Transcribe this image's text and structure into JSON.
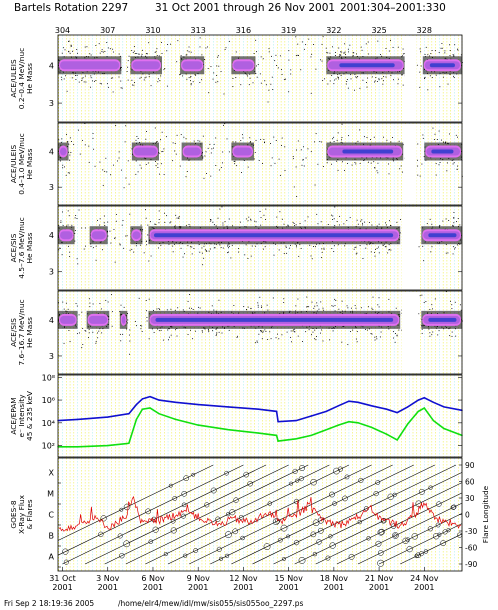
{
  "header": {
    "title": "Bartels Rotation 2297",
    "date_range": "31 Oct 2001 through 26 Nov 2001",
    "doy_range": "2001:304–2001:330"
  },
  "footer": {
    "timestamp": "Fri Sep  2 18:19:36 2005",
    "path": "/home/elr4/mew/idl/mw/sis055/sis055oo_2297.ps"
  },
  "colors": {
    "yellow_grid": "#e8e800",
    "aqua_grid": "#88e8e8",
    "purple_band": "#b060e0",
    "magenta_band": "#e070f0",
    "blue_core": "#4040d0",
    "blue_line": "#1010d0",
    "green_line": "#10e010",
    "xray_line": "#e00000"
  },
  "chart_data": [
    {
      "type": "scatter",
      "panel_label_lines": [
        "ACE/ULEIS",
        "0.2–0.4 MeV/nuc",
        "He Mass"
      ],
      "ylim": [
        2.5,
        4.8
      ],
      "yticks": [
        "4",
        "3"
      ],
      "doy_ticks": [
        "304",
        "307",
        "310",
        "313",
        "316",
        "319",
        "322",
        "325",
        "328"
      ],
      "active_intervals_doy": [
        [
          303.7,
          307.9
        ],
        [
          308.5,
          310.6
        ],
        [
          311.8,
          313.4
        ],
        [
          315.2,
          316.8
        ],
        [
          321.5,
          326.7
        ],
        [
          327.9,
          330.5
        ]
      ],
      "core_intervals_doy": [
        [
          322.1,
          326.3
        ],
        [
          328.1,
          330.3
        ]
      ],
      "gaps_doy": [
        [
          326.7,
          327.5
        ]
      ],
      "band_center": 4.0,
      "scatter_intensity": 0.55
    },
    {
      "type": "scatter",
      "panel_label_lines": [
        "ACE/ULEIS",
        "0.4–1.0 MeV/nuc",
        "He Mass"
      ],
      "ylim": [
        2.5,
        4.8
      ],
      "yticks": [
        "4",
        "3"
      ],
      "active_intervals_doy": [
        [
          303.7,
          304.4
        ],
        [
          308.6,
          310.4
        ],
        [
          311.9,
          313.3
        ],
        [
          315.2,
          316.7
        ],
        [
          321.5,
          326.6
        ],
        [
          328.0,
          330.5
        ]
      ],
      "core_intervals_doy": [
        [
          322.3,
          326.2
        ],
        [
          328.2,
          330.2
        ]
      ],
      "gaps_doy": [
        [
          326.7,
          327.5
        ]
      ],
      "band_center": 4.0,
      "scatter_intensity": 0.4
    },
    {
      "type": "scatter",
      "panel_label_lines": [
        "ACE/SIS",
        "4.5–7.6 MeV/nuc",
        "He Mass"
      ],
      "ylim": [
        2.5,
        4.8
      ],
      "yticks": [
        "4",
        "3"
      ],
      "active_intervals_doy": [
        [
          303.7,
          304.8
        ],
        [
          305.8,
          307.0
        ],
        [
          308.5,
          309.3
        ],
        [
          309.7,
          326.4
        ],
        [
          327.8,
          330.5
        ]
      ],
      "core_intervals_doy": [
        [
          309.8,
          326.2
        ],
        [
          328.0,
          330.4
        ]
      ],
      "gaps_doy": [
        [
          326.5,
          327.6
        ]
      ],
      "band_center": 4.0,
      "scatter_intensity": 0.5
    },
    {
      "type": "scatter",
      "panel_label_lines": [
        "ACE/SIS",
        "7.6–16.7 MeV/nuc",
        "He Mass"
      ],
      "ylim": [
        2.5,
        4.8
      ],
      "yticks": [
        "4",
        "3"
      ],
      "active_intervals_doy": [
        [
          303.7,
          305.0
        ],
        [
          305.6,
          307.1
        ],
        [
          307.8,
          308.3
        ],
        [
          309.7,
          326.4
        ],
        [
          327.8,
          330.5
        ]
      ],
      "core_intervals_doy": [
        [
          309.9,
          326.2
        ],
        [
          328.0,
          330.4
        ]
      ],
      "gaps_doy": [
        [
          326.5,
          327.6
        ]
      ],
      "band_center": 4.0,
      "scatter_intensity": 0.45
    },
    {
      "type": "line",
      "panel_label_lines": [
        "ACE/EPAM",
        "e⁻ Intensity",
        "45 & 235 keV"
      ],
      "y_log": true,
      "ylim_log10": [
        1,
        8.2
      ],
      "yticks": [
        "10⁸",
        "10⁶",
        "10⁴",
        "10²"
      ],
      "series": [
        {
          "color": "blue",
          "x_doy": [
            303.7,
            305,
            307,
            308.4,
            308.9,
            309.3,
            309.8,
            310.4,
            311.5,
            313,
            315,
            317,
            318.2,
            318.3,
            319.5,
            320.5,
            321.5,
            322.3,
            323.0,
            323.6,
            324.5,
            325.5,
            326.2,
            326.9,
            327.6,
            328.0,
            328.6,
            329.3,
            330.5
          ],
          "log10_values": [
            4.2,
            4.3,
            4.5,
            4.8,
            5.6,
            6.1,
            6.3,
            6.0,
            5.8,
            5.6,
            5.4,
            5.2,
            5.0,
            4.1,
            4.2,
            4.6,
            5.0,
            5.5,
            5.9,
            5.8,
            5.5,
            5.2,
            4.9,
            5.4,
            6.0,
            6.2,
            5.8,
            5.4,
            5.1
          ]
        },
        {
          "color": "green",
          "x_doy": [
            303.7,
            305,
            307,
            308.4,
            308.9,
            309.3,
            309.8,
            310.4,
            311.5,
            313,
            315,
            317,
            318.2,
            318.3,
            319.5,
            320.5,
            321.5,
            322.3,
            323.0,
            323.6,
            324.5,
            325.5,
            326.2,
            326.9,
            327.6,
            328.0,
            328.6,
            329.3,
            330.5
          ],
          "log10_values": [
            1.9,
            1.9,
            2.0,
            2.2,
            4.3,
            5.2,
            5.3,
            4.8,
            4.3,
            3.8,
            3.4,
            3.1,
            2.9,
            2.4,
            2.6,
            2.9,
            3.4,
            3.8,
            4.1,
            4.0,
            3.6,
            3.0,
            2.5,
            3.9,
            5.0,
            5.3,
            4.2,
            3.5,
            2.9
          ]
        }
      ]
    },
    {
      "type": "line",
      "panel_label_lines": [
        "GOES-8",
        "X-Ray Flux",
        "& Flares"
      ],
      "left_axis_labels": [
        "X",
        "M",
        "C",
        "B",
        "A"
      ],
      "right_axis_label": "Flare Longitude",
      "right_axis_ticks": [
        "90",
        "60",
        "30",
        "0",
        "-30",
        "-60",
        "-90"
      ],
      "xray_class_log": [
        {
          "doy": 303.7,
          "cls": 1.8
        },
        {
          "doy": 305.0,
          "cls": 2.0
        },
        {
          "doy": 306.2,
          "cls": 2.3
        },
        {
          "doy": 307.1,
          "cls": 1.9
        },
        {
          "doy": 308.4,
          "cls": 2.5
        },
        {
          "doy": 308.7,
          "cls": 3.3
        },
        {
          "doy": 309.2,
          "cls": 2.1
        },
        {
          "doy": 310.3,
          "cls": 2.2
        },
        {
          "doy": 311.2,
          "cls": 2.4
        },
        {
          "doy": 312.1,
          "cls": 2.7
        },
        {
          "doy": 313.5,
          "cls": 2.2
        },
        {
          "doy": 314.4,
          "cls": 2.0
        },
        {
          "doy": 315.3,
          "cls": 2.3
        },
        {
          "doy": 316.6,
          "cls": 2.1
        },
        {
          "doy": 317.5,
          "cls": 2.6
        },
        {
          "doy": 318.6,
          "cls": 2.2
        },
        {
          "doy": 319.4,
          "cls": 2.4
        },
        {
          "doy": 320.3,
          "cls": 2.9
        },
        {
          "doy": 321.4,
          "cls": 2.2
        },
        {
          "doy": 322.4,
          "cls": 2.0
        },
        {
          "doy": 323.3,
          "cls": 2.3
        },
        {
          "doy": 324.4,
          "cls": 2.7
        },
        {
          "doy": 325.3,
          "cls": 2.2
        },
        {
          "doy": 326.4,
          "cls": 2.0
        },
        {
          "doy": 327.3,
          "cls": 2.4
        },
        {
          "doy": 328.0,
          "cls": 3.1
        },
        {
          "doy": 328.7,
          "cls": 2.3
        },
        {
          "doy": 329.6,
          "cls": 2.1
        },
        {
          "doy": 330.5,
          "cls": 2.0
        }
      ],
      "flare_tracks_start_doy": [
        300.5,
        302.5,
        304.0,
        305.5,
        306.8,
        308.2,
        309.5,
        311.0,
        312.4,
        313.8,
        315.2,
        316.6,
        318.0,
        319.4,
        320.8,
        322.2,
        323.6,
        325.0,
        326.4
      ]
    }
  ],
  "x_axis": {
    "doy_start": 303.7,
    "doy_end": 330.5,
    "date_ticks": [
      {
        "doy": 304,
        "label": "31 Oct"
      },
      {
        "doy": 307,
        "label": "3 Nov"
      },
      {
        "doy": 310,
        "label": "6 Nov"
      },
      {
        "doy": 313,
        "label": "9 Nov"
      },
      {
        "doy": 316,
        "label": "12 Nov"
      },
      {
        "doy": 319,
        "label": "15 Nov"
      },
      {
        "doy": 322,
        "label": "18 Nov"
      },
      {
        "doy": 325,
        "label": "21 Nov"
      },
      {
        "doy": 328,
        "label": "24 Nov"
      }
    ],
    "year_label": "2001"
  }
}
